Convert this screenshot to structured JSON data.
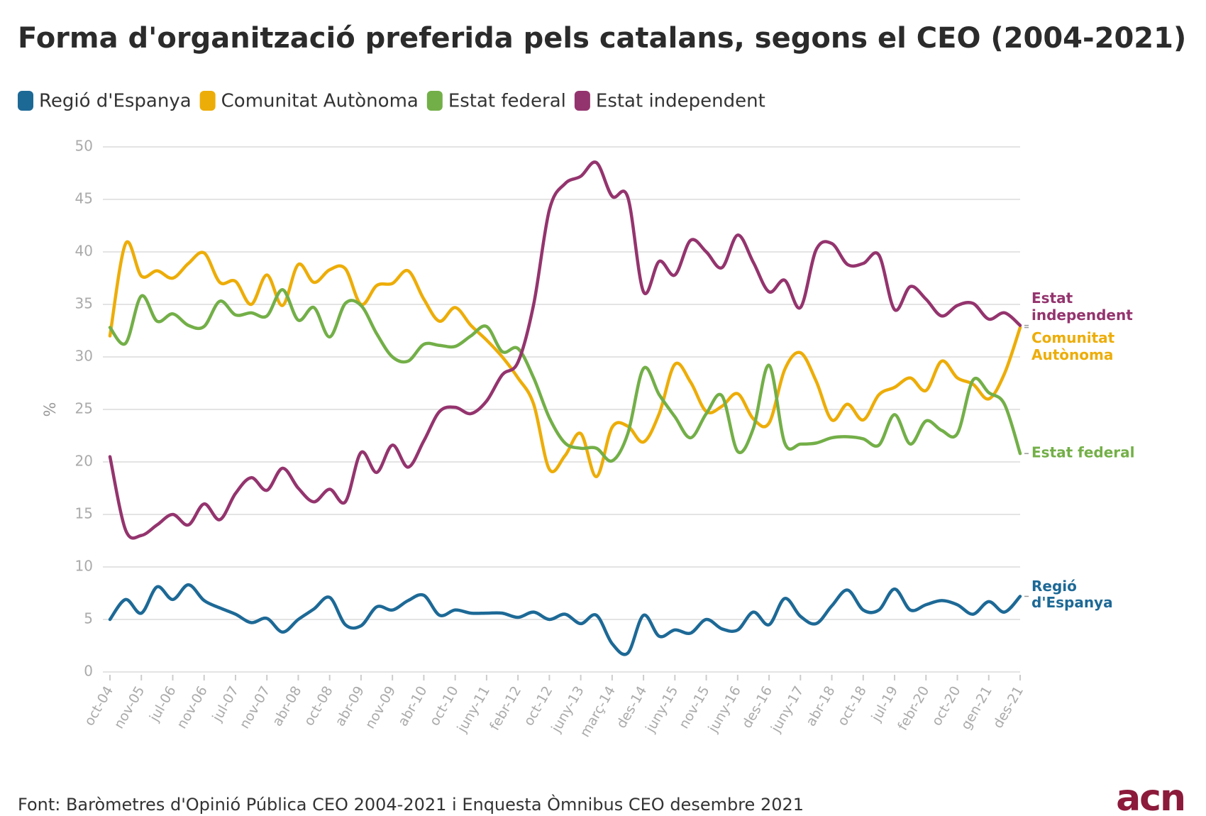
{
  "chart_data": {
    "type": "line",
    "title": "Forma d'organització preferida pels catalans, segons el CEO (2004-2021)",
    "ylabel": "%",
    "source": "Font: Baròmetres d'Opinió Pública CEO 2004-2021 i Enquesta Òmnibus CEO desembre 2021",
    "logo": "acn",
    "categories": [
      "oct-04",
      null,
      "nov-05",
      null,
      "jul-06",
      null,
      "nov-06",
      null,
      "jul-07",
      null,
      "nov-07",
      null,
      "abr-08",
      null,
      "oct-08",
      null,
      "abr-09",
      null,
      "nov-09",
      null,
      "abr-10",
      null,
      "oct-10",
      null,
      "juny-11",
      null,
      "febr-12",
      null,
      "oct-12",
      null,
      "juny-13",
      null,
      "març-14",
      null,
      "des-14",
      null,
      "juny-15",
      null,
      "nov-15",
      null,
      "juny-16",
      null,
      "des-16",
      null,
      "juny-17",
      null,
      "abr-18",
      null,
      "oct-18",
      null,
      "jul-19",
      null,
      "febr-20",
      null,
      "oct-20",
      null,
      "gen-21",
      null,
      "des-21"
    ],
    "ylim": [
      0,
      50
    ],
    "yticks": [
      0,
      5,
      10,
      15,
      20,
      25,
      30,
      35,
      40,
      45,
      50
    ],
    "grid": true,
    "series": [
      {
        "name": "Regió d'Espanya",
        "color": "#1d6996",
        "end_label": [
          "Regió",
          "d'Espanya"
        ],
        "values": [
          5,
          6.9,
          5.6,
          8.1,
          6.9,
          8.3,
          6.8,
          6.1,
          5.5,
          4.7,
          5.1,
          3.8,
          5,
          6,
          7.1,
          4.5,
          4.4,
          6.2,
          5.9,
          6.8,
          7.3,
          5.4,
          5.9,
          5.6,
          5.6,
          5.6,
          5.2,
          5.7,
          5,
          5.5,
          4.6,
          5.4,
          2.7,
          1.8,
          5.4,
          3.4,
          4,
          3.7,
          5,
          4.1,
          4,
          5.7,
          4.5,
          7,
          5.3,
          4.6,
          6.3,
          7.8,
          5.9,
          5.9,
          7.9,
          5.9,
          6.4,
          6.8,
          6.4,
          5.5,
          6.7,
          5.7,
          7.2
        ]
      },
      {
        "name": "Comunitat Autònoma",
        "color": "#edad08",
        "end_label": [
          "Comunitat",
          "Autònoma"
        ],
        "values": [
          32,
          40.8,
          37.7,
          38.2,
          37.5,
          38.9,
          39.9,
          37.1,
          37.2,
          35,
          37.8,
          34.9,
          38.8,
          37.1,
          38.3,
          38.4,
          35,
          36.8,
          37,
          38.2,
          35.5,
          33.4,
          34.7,
          33,
          31.6,
          30,
          28,
          25.5,
          19.3,
          20.6,
          22.7,
          18.6,
          23.3,
          23.4,
          21.9,
          24.6,
          29.3,
          27.6,
          24.8,
          25.3,
          26.5,
          24.1,
          23.7,
          28.8,
          30.4,
          27.7,
          24,
          25.5,
          24,
          26.4,
          27.1,
          28,
          26.8,
          29.6,
          28,
          27.4,
          26,
          28.4,
          32.8
        ]
      },
      {
        "name": "Estat federal",
        "color": "#73af48",
        "end_label": [
          "Estat federal"
        ],
        "values": [
          32.8,
          31.3,
          35.8,
          33.4,
          34.1,
          33,
          32.9,
          35.3,
          34,
          34.2,
          33.9,
          36.4,
          33.5,
          34.7,
          31.9,
          35.1,
          34.9,
          32.2,
          30,
          29.6,
          31.2,
          31.1,
          31,
          32,
          32.9,
          30.5,
          30.8,
          28,
          24.2,
          21.8,
          21.3,
          21.3,
          20.1,
          22.7,
          28.9,
          26.4,
          24.3,
          22.3,
          24.6,
          26.3,
          21,
          23.2,
          29.2,
          21.8,
          21.7,
          21.8,
          22.3,
          22.4,
          22.2,
          21.6,
          24.5,
          21.7,
          23.9,
          23,
          22.7,
          27.8,
          26.6,
          25.5,
          20.8
        ]
      },
      {
        "name": "Estat independent",
        "color": "#94346e",
        "end_label": [
          "Estat",
          "independent"
        ],
        "values": [
          20.5,
          13.5,
          13,
          14,
          15,
          14,
          16,
          14.5,
          17,
          18.5,
          17.3,
          19.4,
          17.5,
          16.2,
          17.4,
          16.2,
          20.9,
          19,
          21.6,
          19.5,
          22,
          24.8,
          25.2,
          24.6,
          25.8,
          28.3,
          29.5,
          35,
          44,
          46.5,
          47.2,
          48.5,
          45.3,
          45.2,
          36.2,
          39.1,
          37.8,
          41.1,
          40,
          38.5,
          41.6,
          39,
          36.2,
          37.3,
          34.7,
          40.2,
          40.8,
          38.8,
          38.9,
          39.7,
          34.5,
          36.7,
          35.5,
          33.9,
          34.9,
          35.1,
          33.6,
          34.2,
          33
        ]
      }
    ]
  }
}
